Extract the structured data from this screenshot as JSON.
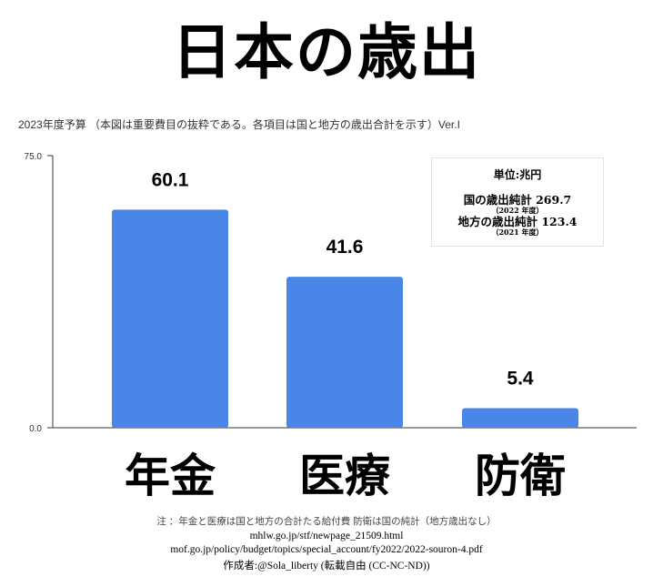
{
  "title": "日本の歳出",
  "subtitle": "2023年度予算 （本図は重要費目の抜粋である。各項目は国と地方の歳出合計を示す）Ver.I",
  "legend": {
    "unit": "単位:兆円",
    "national": "国の歳出純計 269.7",
    "national_year": "（2022 年度）",
    "local": "地方の歳出純計 123.4",
    "local_year": "（2021 年度）"
  },
  "footer": {
    "note": "注 ：年金と医療は国と地方の合計たる給付費 防衛は国の純計（地方歳出なし）",
    "source1": "mhlw.go.jp/stf/newpage_21509.html",
    "source2": "mof.go.jp/policy/budget/topics/special_account/fy2022/2022-souron-4.pdf",
    "credit": "作成者:@Sola_liberty (転載自由 (CC-NC-ND))"
  },
  "chart_data": {
    "type": "bar",
    "title": "日本の歳出",
    "categories": [
      "年金",
      "医療",
      "防衛"
    ],
    "values": [
      60.1,
      41.6,
      5.4
    ],
    "value_labels": [
      "60.1",
      "41.6",
      "5.4"
    ],
    "ylim": [
      0,
      75
    ],
    "y_ticks": [
      "0.0",
      "75.0"
    ],
    "bar_color": "#4a86e8",
    "grid": false,
    "legend_position": "top-right"
  }
}
